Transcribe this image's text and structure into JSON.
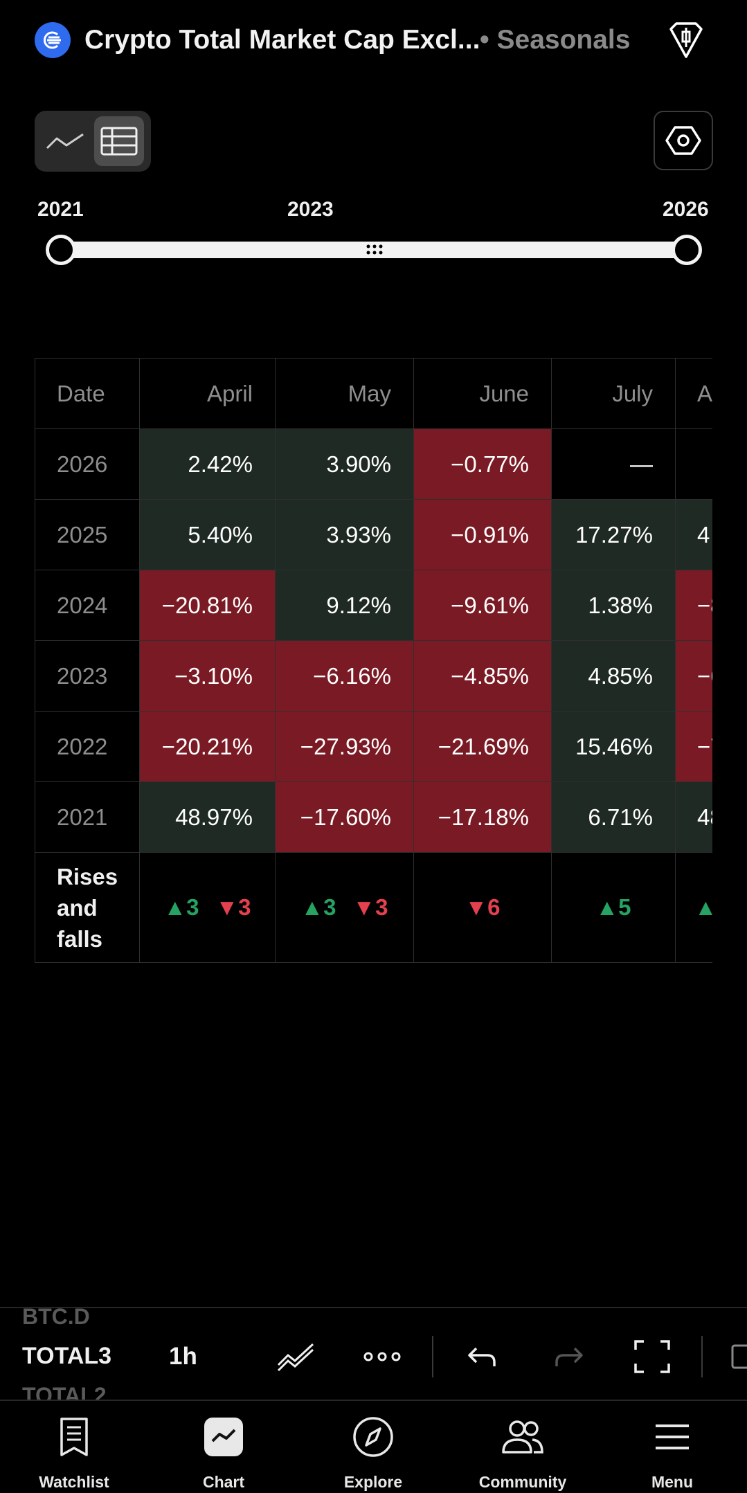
{
  "header": {
    "title": "Crypto Total Market Cap Excl...",
    "subtitle": "• Seasonals",
    "logo_icon": "crypto-logo-icon",
    "alert_icon": "alert-diamond-icon"
  },
  "view_toggle": {
    "line_icon": "line-chart-icon",
    "table_icon": "table-icon",
    "active": "table"
  },
  "settings_icon": "hexagon-settings-icon",
  "range": {
    "start_label": "2021",
    "mid_label": "2023",
    "end_label": "2026"
  },
  "table": {
    "header": {
      "date": "Date",
      "months": [
        "April",
        "May",
        "June",
        "July",
        "A"
      ]
    },
    "rows": [
      {
        "year": "2026",
        "cells": [
          {
            "v": "2.42%",
            "t": "pos"
          },
          {
            "v": "3.90%",
            "t": "pos"
          },
          {
            "v": "−0.77%",
            "t": "neg"
          },
          {
            "v": "—",
            "t": "none"
          },
          {
            "v": "",
            "t": "none"
          }
        ]
      },
      {
        "year": "2025",
        "cells": [
          {
            "v": "5.40%",
            "t": "pos"
          },
          {
            "v": "3.93%",
            "t": "pos"
          },
          {
            "v": "−0.91%",
            "t": "neg"
          },
          {
            "v": "17.27%",
            "t": "pos"
          },
          {
            "v": "4",
            "t": "pos"
          }
        ]
      },
      {
        "year": "2024",
        "cells": [
          {
            "v": "−20.81%",
            "t": "neg"
          },
          {
            "v": "9.12%",
            "t": "pos"
          },
          {
            "v": "−9.61%",
            "t": "neg"
          },
          {
            "v": "1.38%",
            "t": "pos"
          },
          {
            "v": "−8",
            "t": "neg"
          }
        ]
      },
      {
        "year": "2023",
        "cells": [
          {
            "v": "−3.10%",
            "t": "neg"
          },
          {
            "v": "−6.16%",
            "t": "neg"
          },
          {
            "v": "−4.85%",
            "t": "neg"
          },
          {
            "v": "4.85%",
            "t": "pos"
          },
          {
            "v": "−6",
            "t": "neg"
          }
        ]
      },
      {
        "year": "2022",
        "cells": [
          {
            "v": "−20.21%",
            "t": "neg"
          },
          {
            "v": "−27.93%",
            "t": "neg"
          },
          {
            "v": "−21.69%",
            "t": "neg"
          },
          {
            "v": "15.46%",
            "t": "pos"
          },
          {
            "v": "−7",
            "t": "neg"
          }
        ]
      },
      {
        "year": "2021",
        "cells": [
          {
            "v": "48.97%",
            "t": "pos"
          },
          {
            "v": "−17.60%",
            "t": "neg"
          },
          {
            "v": "−17.18%",
            "t": "neg"
          },
          {
            "v": "6.71%",
            "t": "pos"
          },
          {
            "v": "48",
            "t": "pos"
          }
        ]
      }
    ],
    "rises_falls": {
      "label": "Rises and falls",
      "cells": [
        {
          "up": "▲3",
          "down": "▼3"
        },
        {
          "up": "▲3",
          "down": "▼3"
        },
        {
          "up": "",
          "down": "▼6"
        },
        {
          "up": "▲5",
          "down": ""
        },
        {
          "up": "▲",
          "down": ""
        }
      ]
    }
  },
  "toolbar": {
    "symbol_prev": "BTC.D",
    "symbol_current": "TOTAL3",
    "symbol_next": "TOTAL2",
    "interval": "1h",
    "icons": [
      "drawing-tools-icon",
      "more-icon",
      "undo-icon",
      "redo-icon",
      "fullscreen-icon",
      "layout-icon"
    ]
  },
  "nav": {
    "items": [
      {
        "label": "Watchlist",
        "icon": "watchlist-icon"
      },
      {
        "label": "Chart",
        "icon": "chart-icon"
      },
      {
        "label": "Explore",
        "icon": "compass-icon"
      },
      {
        "label": "Community",
        "icon": "community-icon"
      },
      {
        "label": "Menu",
        "icon": "menu-icon"
      }
    ]
  },
  "colors": {
    "positive_bg": "#1e2a23",
    "negative_bg": "#7a1a24",
    "up": "#26a262",
    "down": "#e5404f",
    "accent": "#2f6bef"
  }
}
